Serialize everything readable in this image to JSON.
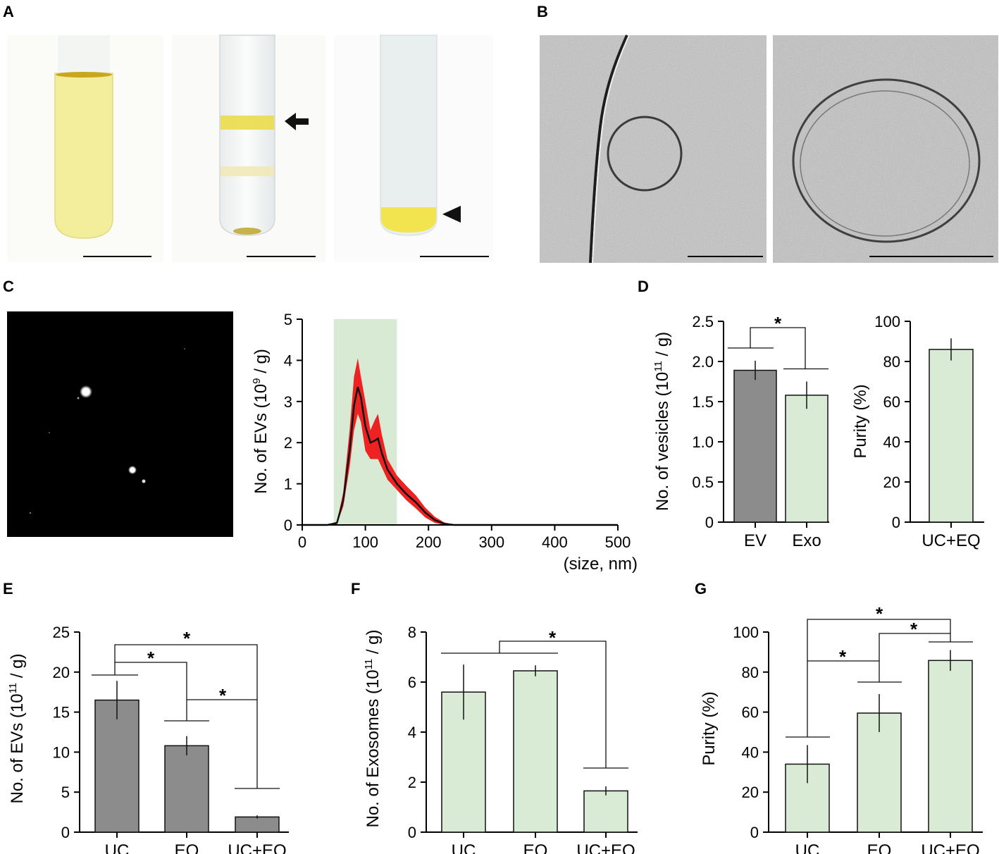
{
  "panels": {
    "A": "A",
    "B": "B",
    "C": "C",
    "D": "D",
    "E": "E",
    "F": "F",
    "G": "G"
  },
  "colors": {
    "gray_bar": "#8c8c8c",
    "green_bar": "#d9ebd5",
    "green_band": "#d8ead3",
    "red_band": "#ee2222",
    "yellow_liquid": "#f2ec9a",
    "yellow_band": "#eadc4a",
    "micro_bg": "#b9b9b9"
  },
  "icons": {
    "arrow": "arrow-left-icon",
    "arrowhead": "triangle-left-icon"
  },
  "chart_data": [
    {
      "id": "C",
      "type": "line",
      "xlabel": "(size, nm)",
      "ylabel": "No. of EVs (10",
      "ylabel_sup": "9",
      "ylabel_end": " / g)",
      "xlim": [
        0,
        500
      ],
      "ylim": [
        0,
        5
      ],
      "xticks": [
        "0",
        "100",
        "200",
        "300",
        "400",
        "500"
      ],
      "yticks": [
        "0",
        "1",
        "2",
        "3",
        "4",
        "5"
      ],
      "highlight_range": [
        50,
        150
      ],
      "mean": [
        [
          0,
          0
        ],
        [
          40,
          0
        ],
        [
          55,
          0.05
        ],
        [
          65,
          0.6
        ],
        [
          75,
          1.8
        ],
        [
          82,
          2.9
        ],
        [
          88,
          3.35
        ],
        [
          93,
          3.1
        ],
        [
          100,
          2.4
        ],
        [
          108,
          2.0
        ],
        [
          115,
          2.05
        ],
        [
          120,
          2.1
        ],
        [
          126,
          1.75
        ],
        [
          135,
          1.35
        ],
        [
          150,
          1.0
        ],
        [
          165,
          0.75
        ],
        [
          180,
          0.55
        ],
        [
          195,
          0.3
        ],
        [
          210,
          0.12
        ],
        [
          225,
          0.03
        ],
        [
          240,
          0
        ],
        [
          500,
          0
        ]
      ],
      "upper": [
        [
          0,
          0
        ],
        [
          40,
          0
        ],
        [
          55,
          0.08
        ],
        [
          65,
          0.8
        ],
        [
          75,
          2.3
        ],
        [
          82,
          3.6
        ],
        [
          88,
          4.05
        ],
        [
          93,
          3.6
        ],
        [
          100,
          3.0
        ],
        [
          108,
          2.3
        ],
        [
          115,
          2.55
        ],
        [
          120,
          2.7
        ],
        [
          126,
          2.2
        ],
        [
          135,
          1.6
        ],
        [
          150,
          1.2
        ],
        [
          165,
          0.95
        ],
        [
          180,
          0.72
        ],
        [
          195,
          0.42
        ],
        [
          210,
          0.2
        ],
        [
          225,
          0.06
        ],
        [
          240,
          0.01
        ],
        [
          500,
          0
        ]
      ],
      "lower": [
        [
          0,
          0
        ],
        [
          40,
          0
        ],
        [
          55,
          0.02
        ],
        [
          65,
          0.45
        ],
        [
          75,
          1.4
        ],
        [
          82,
          2.3
        ],
        [
          88,
          2.7
        ],
        [
          93,
          2.5
        ],
        [
          100,
          1.8
        ],
        [
          108,
          1.6
        ],
        [
          115,
          1.6
        ],
        [
          120,
          1.6
        ],
        [
          126,
          1.4
        ],
        [
          135,
          1.1
        ],
        [
          150,
          0.85
        ],
        [
          165,
          0.6
        ],
        [
          180,
          0.4
        ],
        [
          195,
          0.18
        ],
        [
          210,
          0.05
        ],
        [
          225,
          0
        ],
        [
          240,
          0
        ],
        [
          500,
          0
        ]
      ]
    },
    {
      "id": "D1",
      "type": "bar",
      "ylabel": "No. of vesicles (10",
      "ylabel_sup": "11",
      "ylabel_end": " / g)",
      "ylim": [
        0,
        2.5
      ],
      "yticks": [
        "0",
        "0.5",
        "1.0",
        "1.5",
        "2.0",
        "2.5"
      ],
      "categories": [
        "EV",
        "Exo"
      ],
      "values": [
        1.89,
        1.58
      ],
      "errors": [
        0.12,
        0.17
      ],
      "colors": [
        "#8c8c8c",
        "#d9ebd5"
      ],
      "annotations": [
        "*"
      ]
    },
    {
      "id": "D2",
      "type": "bar",
      "ylabel": "Purity (%)",
      "ylim": [
        0,
        100
      ],
      "yticks": [
        "0",
        "20",
        "40",
        "60",
        "80",
        "100"
      ],
      "categories": [
        "UC+EQ"
      ],
      "values": [
        86
      ],
      "errors": [
        5.5
      ],
      "colors": [
        "#d9ebd5"
      ]
    },
    {
      "id": "E",
      "type": "bar",
      "ylabel": "No. of EVs (10",
      "ylabel_sup": "11",
      "ylabel_end": " / g)",
      "ylim": [
        0,
        25
      ],
      "yticks": [
        "0",
        "5",
        "10",
        "15",
        "20",
        "25"
      ],
      "categories": [
        "UC",
        "EQ",
        "UC+EQ"
      ],
      "values": [
        16.5,
        10.8,
        1.9
      ],
      "errors": [
        2.4,
        1.2,
        0.2
      ],
      "colors": [
        "#8c8c8c",
        "#8c8c8c",
        "#8c8c8c"
      ],
      "annotations": [
        "*",
        "*",
        "*"
      ]
    },
    {
      "id": "F",
      "type": "bar",
      "ylabel": "No. of Exosomes (10",
      "ylabel_sup": "11",
      "ylabel_end": " / g)",
      "ylim": [
        0,
        8
      ],
      "yticks": [
        "0",
        "2",
        "4",
        "6",
        "8"
      ],
      "categories": [
        "UC",
        "EQ",
        "UC+EQ"
      ],
      "values": [
        5.6,
        6.45,
        1.65
      ],
      "errors": [
        1.1,
        0.22,
        0.18
      ],
      "colors": [
        "#d9ebd5",
        "#d9ebd5",
        "#d9ebd5"
      ],
      "annotations": [
        "*"
      ]
    },
    {
      "id": "G",
      "type": "bar",
      "ylabel": "Purity (%)",
      "ylim": [
        0,
        100
      ],
      "yticks": [
        "0",
        "20",
        "40",
        "60",
        "80",
        "100"
      ],
      "categories": [
        "UC",
        "EQ",
        "UC+EQ"
      ],
      "values": [
        34,
        59.5,
        85.8
      ],
      "errors": [
        9.5,
        9.5,
        5.2
      ],
      "colors": [
        "#d9ebd5",
        "#d9ebd5",
        "#d9ebd5"
      ],
      "annotations": [
        "*",
        "*",
        "*"
      ]
    }
  ]
}
